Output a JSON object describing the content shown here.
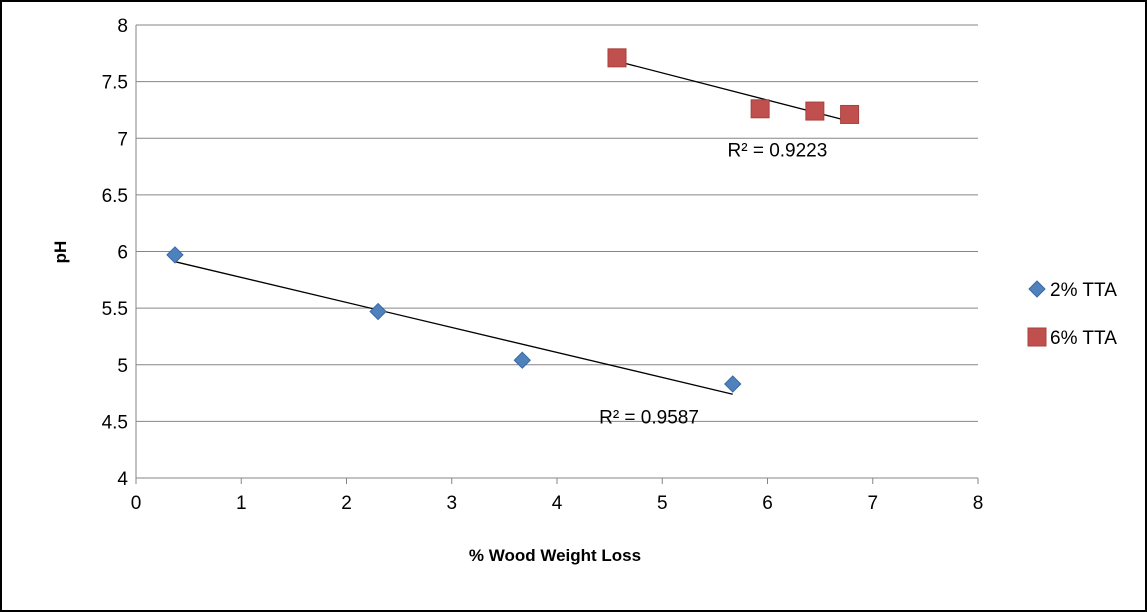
{
  "chart_data": {
    "type": "scatter",
    "title": "",
    "xlabel": "% Wood Weight Loss",
    "ylabel": "pH",
    "xlim": [
      0,
      8
    ],
    "ylim": [
      4,
      8
    ],
    "x_ticks": [
      "0",
      "1",
      "2",
      "3",
      "4",
      "5",
      "6",
      "7",
      "8"
    ],
    "y_ticks": [
      "4",
      "4.5",
      "5",
      "5.5",
      "6",
      "6.5",
      "7",
      "7.5",
      "8"
    ],
    "grid": "horizontal",
    "legend_position": "right",
    "series": [
      {
        "name": "2% TTA",
        "marker": "diamond",
        "color": "#4f81bd",
        "points": [
          {
            "x": 0.37,
            "y": 5.97
          },
          {
            "x": 2.3,
            "y": 5.47
          },
          {
            "x": 3.67,
            "y": 5.04
          },
          {
            "x": 5.67,
            "y": 4.83
          }
        ],
        "trendline": {
          "x": [
            0.37,
            5.67
          ],
          "y": [
            5.91,
            4.74
          ]
        },
        "r2_label": "R² = 0.9587",
        "r2_anchor": {
          "x": 4.4,
          "y": 4.48
        }
      },
      {
        "name": "6% TTA",
        "marker": "square",
        "color": "#c0504d",
        "points": [
          {
            "x": 4.57,
            "y": 7.71
          },
          {
            "x": 5.93,
            "y": 7.26
          },
          {
            "x": 6.45,
            "y": 7.24
          },
          {
            "x": 6.78,
            "y": 7.21
          }
        ],
        "trendline": {
          "x": [
            4.57,
            6.78
          ],
          "y": [
            7.68,
            7.15
          ]
        },
        "r2_label": "R² = 0.9223",
        "r2_anchor": {
          "x": 5.62,
          "y": 6.84
        }
      }
    ]
  }
}
